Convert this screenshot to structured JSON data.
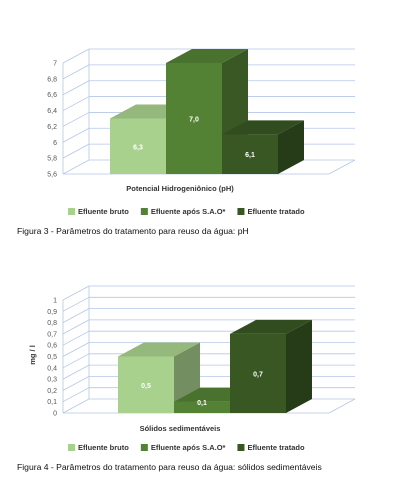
{
  "figures": [
    {
      "caption": "Figura 3 - Parâmetros do tratamento para reuso da água: pH",
      "chart_data": {
        "type": "bar",
        "three_d": true,
        "categories": [
          "Potencial Hidrogeniônico (pH)"
        ],
        "xlabel": "Potencial Hidrogeniônico (pH)",
        "ylabel": "",
        "ylim": [
          5.6,
          7.0
        ],
        "yticks": [
          "5,6",
          "5,8",
          "6",
          "6,2",
          "6,4",
          "6,6",
          "6,8",
          "7"
        ],
        "grid": true,
        "legend": "bottom",
        "series": [
          {
            "name": "Efluente bruto",
            "value": 6.3,
            "label": "6,3",
            "color": "#a9d18e"
          },
          {
            "name": "Efluente após S.A.O*",
            "value": 7.0,
            "label": "7,0",
            "color": "#548235"
          },
          {
            "name": "Efluente tratado",
            "value": 6.1,
            "label": "6,1",
            "color": "#385723"
          }
        ]
      }
    },
    {
      "caption": "Figura 4 - Parâmetros do tratamento para reuso da água: sólidos sedimentáveis",
      "chart_data": {
        "type": "bar",
        "three_d": true,
        "categories": [
          "Sólidos sedimentáveis"
        ],
        "xlabel": "Sólidos sedimentáveis",
        "ylabel": "mg / l",
        "ylim": [
          0,
          1.0
        ],
        "yticks": [
          "0",
          "0,1",
          "0,2",
          "0,3",
          "0,4",
          "0,5",
          "0,6",
          "0,7",
          "0,8",
          "0,9",
          "1"
        ],
        "grid": true,
        "legend": "bottom",
        "series": [
          {
            "name": "Efluente bruto",
            "value": 0.5,
            "label": "0,5",
            "color": "#a9d18e"
          },
          {
            "name": "Efluente após S.A.O*",
            "value": 0.1,
            "label": "0,1",
            "color": "#548235"
          },
          {
            "name": "Efluente tratado",
            "value": 0.7,
            "label": "0,7",
            "color": "#385723"
          }
        ]
      }
    }
  ]
}
